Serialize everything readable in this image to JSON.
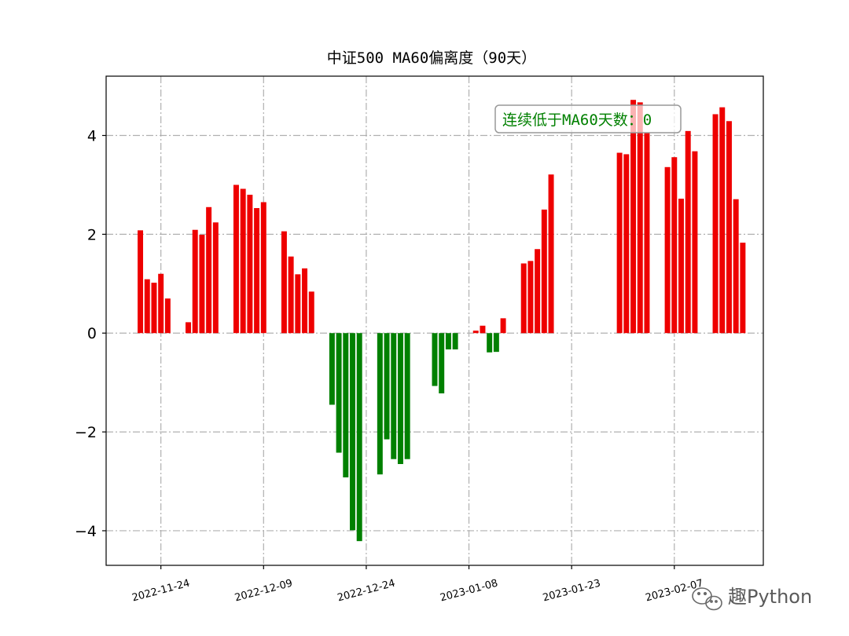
{
  "chart_data": {
    "type": "bar",
    "title": "中证500 MA60偏离度（90天）",
    "xlabel": "",
    "ylabel": "",
    "x_axis": "date",
    "xlim": [
      "2022-11-16",
      "2023-02-20"
    ],
    "ylim": [
      -4.7,
      5.2
    ],
    "xticks": [
      "2022-11-24",
      "2022-12-09",
      "2022-12-24",
      "2023-01-08",
      "2023-01-23",
      "2023-02-07"
    ],
    "yticks": [
      -4,
      -2,
      0,
      2,
      4
    ],
    "ytick_labels": [
      "−4",
      "−2",
      "0",
      "2",
      "4"
    ],
    "grid": true,
    "colors": {
      "positive": "#ee0000",
      "negative": "#008000",
      "grid": "#b0b0b0"
    },
    "annotation": {
      "text": "连续低于MA60天数：0",
      "color": "#008000",
      "anchor": "top-right"
    },
    "dates": [
      "2022-11-21",
      "2022-11-22",
      "2022-11-23",
      "2022-11-24",
      "2022-11-25",
      "2022-11-28",
      "2022-11-29",
      "2022-11-30",
      "2022-12-01",
      "2022-12-02",
      "2022-12-05",
      "2022-12-06",
      "2022-12-07",
      "2022-12-08",
      "2022-12-09",
      "2022-12-12",
      "2022-12-13",
      "2022-12-14",
      "2022-12-15",
      "2022-12-16",
      "2022-12-19",
      "2022-12-20",
      "2022-12-21",
      "2022-12-22",
      "2022-12-23",
      "2022-12-26",
      "2022-12-27",
      "2022-12-28",
      "2022-12-29",
      "2022-12-30",
      "2023-01-03",
      "2023-01-04",
      "2023-01-05",
      "2023-01-06",
      "2023-01-09",
      "2023-01-10",
      "2023-01-11",
      "2023-01-12",
      "2023-01-13",
      "2023-01-16",
      "2023-01-17",
      "2023-01-18",
      "2023-01-19",
      "2023-01-20",
      "2023-01-30",
      "2023-01-31",
      "2023-02-01",
      "2023-02-02",
      "2023-02-03",
      "2023-02-06",
      "2023-02-07",
      "2023-02-08",
      "2023-02-09",
      "2023-02-10",
      "2023-02-13",
      "2023-02-14",
      "2023-02-15",
      "2023-02-16",
      "2023-02-17"
    ],
    "values": [
      2.08,
      1.09,
      1.02,
      1.2,
      0.7,
      0.22,
      2.09,
      1.99,
      2.55,
      2.24,
      3.0,
      2.92,
      2.8,
      2.53,
      2.65,
      2.06,
      1.55,
      1.19,
      1.31,
      0.84,
      -1.45,
      -2.42,
      -2.92,
      -3.99,
      -4.21,
      -2.86,
      -2.15,
      -2.55,
      -2.65,
      -2.55,
      -1.07,
      -1.22,
      -0.33,
      -0.33,
      0.05,
      0.15,
      -0.39,
      -0.38,
      0.3,
      1.41,
      1.46,
      1.7,
      2.5,
      3.21,
      3.65,
      3.62,
      4.72,
      4.67,
      4.06,
      3.36,
      3.56,
      2.72,
      4.09,
      3.68,
      4.43,
      4.57,
      4.29,
      2.71,
      1.83
    ]
  },
  "watermark": {
    "text": "趣Python",
    "icon": "wechat-icon"
  }
}
